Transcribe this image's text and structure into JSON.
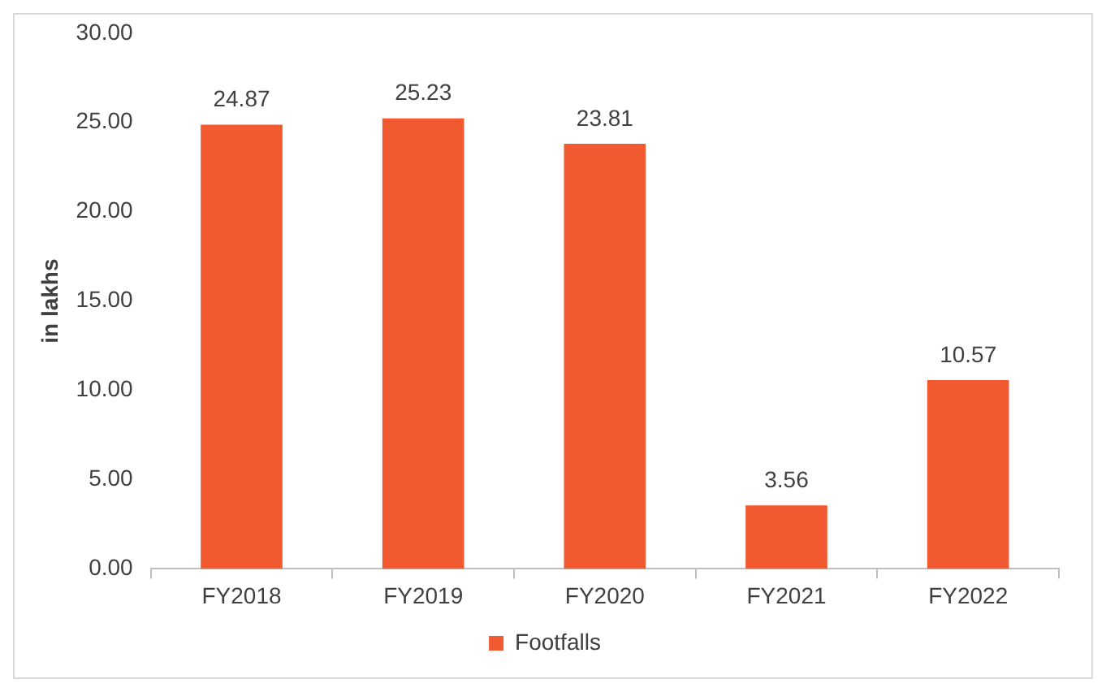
{
  "chart_data": {
    "type": "bar",
    "ylabel": "in lakhs",
    "categories": [
      "FY2018",
      "FY2019",
      "FY2020",
      "FY2021",
      "FY2022"
    ],
    "series": [
      {
        "name": "Footfalls",
        "color": "#f15a31",
        "values": [
          24.87,
          25.23,
          23.81,
          3.56,
          10.57
        ]
      }
    ],
    "ylim": [
      0,
      30
    ],
    "yticks": [
      {
        "value": 0,
        "label": "0.00"
      },
      {
        "value": 5,
        "label": "5.00"
      },
      {
        "value": 10,
        "label": "10.00"
      },
      {
        "value": 15,
        "label": "15.00"
      },
      {
        "value": 20,
        "label": "20.00"
      },
      {
        "value": 25,
        "label": "25.00"
      },
      {
        "value": 30,
        "label": "30.00"
      }
    ],
    "data_labels": true,
    "legend": "bottom"
  }
}
